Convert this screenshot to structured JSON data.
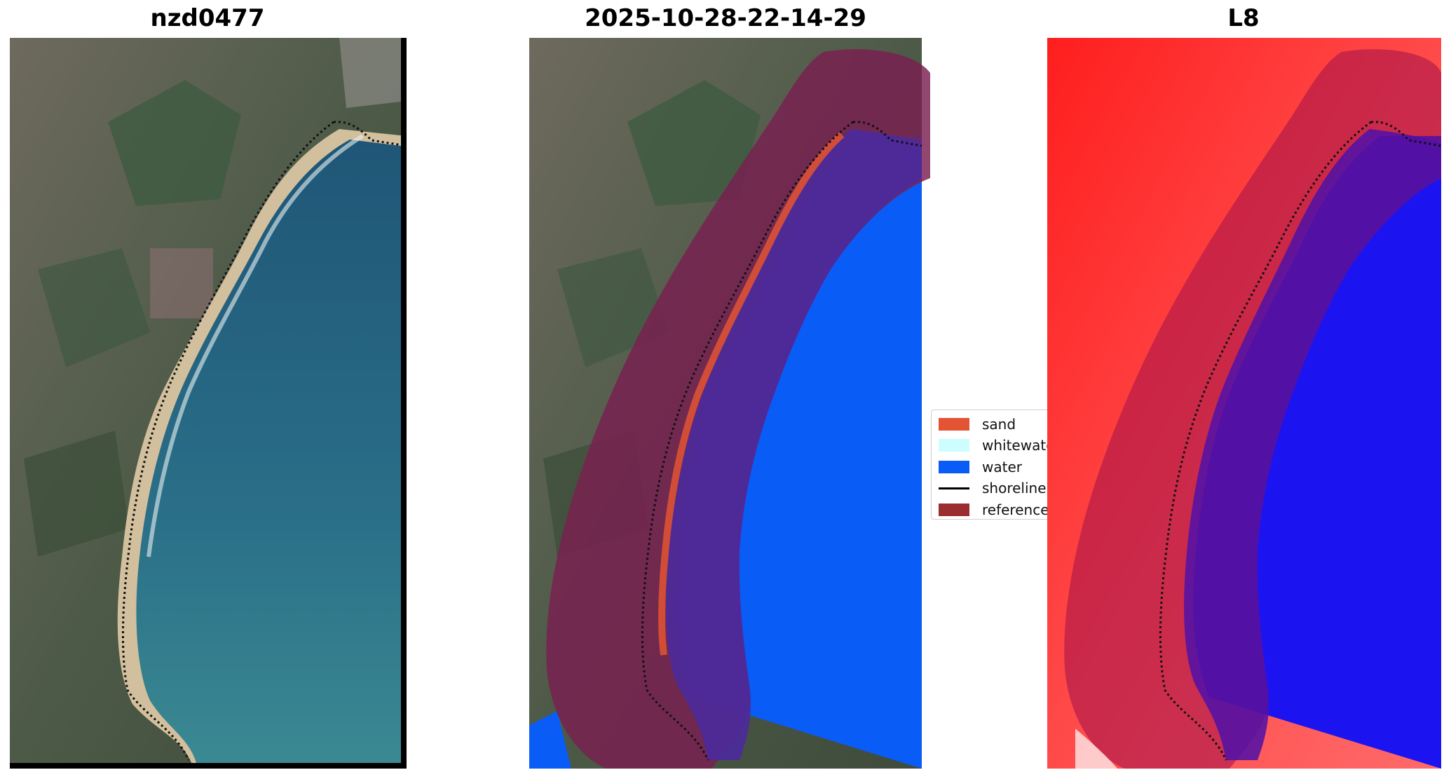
{
  "panels": [
    {
      "title": "nzd0477",
      "layer": "rgb"
    },
    {
      "title": "2025-10-28-22-14-29",
      "layer": "classification"
    },
    {
      "title": "L8",
      "layer": "index"
    }
  ],
  "legend": {
    "items": [
      {
        "label": "sand",
        "color": "#e25433",
        "kind": "patch"
      },
      {
        "label": "whitewater",
        "color": "#ccfdff",
        "kind": "patch"
      },
      {
        "label": "water",
        "color": "#0a5cf6",
        "kind": "patch"
      },
      {
        "label": "shoreline",
        "color": "#000000",
        "kind": "line"
      },
      {
        "label": "reference",
        "color": "#9b2c30",
        "kind": "patch"
      }
    ]
  },
  "colors": {
    "land": "#5b5a4c",
    "sea": "#2c6b86",
    "sand": "#c9b391",
    "class_water": "#0a5cf6",
    "buffer": "#7a1e50",
    "index_land": "#ff2a2a",
    "index_water": "#1c14f0"
  }
}
